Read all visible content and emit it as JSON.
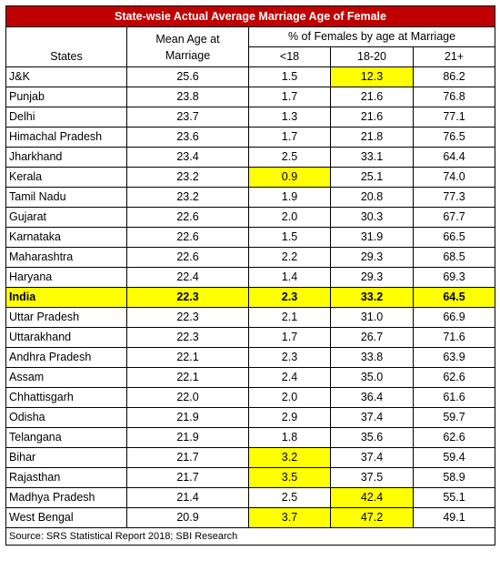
{
  "title": "State-wsie Actual Average Marriage Age of Female",
  "headers": {
    "states": "States",
    "mean_line1": "Mean Age at",
    "mean_line2": "Marriage",
    "pct_group": "% of Females by age at Marriage",
    "lt18": "<18",
    "r18_20": "18-20",
    "r21p": "21+"
  },
  "rows": [
    {
      "state": "J&K",
      "mean": "25.6",
      "lt18": "1.5",
      "r18_20": "12.3",
      "r21p": "86.2",
      "highlight": [
        "r18_20"
      ]
    },
    {
      "state": "Punjab",
      "mean": "23.8",
      "lt18": "1.7",
      "r18_20": "21.6",
      "r21p": "76.8",
      "highlight": []
    },
    {
      "state": "Delhi",
      "mean": "23.7",
      "lt18": "1.3",
      "r18_20": "21.6",
      "r21p": "77.1",
      "highlight": []
    },
    {
      "state": "Himachal Pradesh",
      "mean": "23.6",
      "lt18": "1.7",
      "r18_20": "21.8",
      "r21p": "76.5",
      "highlight": []
    },
    {
      "state": "Jharkhand",
      "mean": "23.4",
      "lt18": "2.5",
      "r18_20": "33.1",
      "r21p": "64.4",
      "highlight": []
    },
    {
      "state": "Kerala",
      "mean": "23.2",
      "lt18": "0.9",
      "r18_20": "25.1",
      "r21p": "74.0",
      "highlight": [
        "lt18"
      ]
    },
    {
      "state": "Tamil Nadu",
      "mean": "23.2",
      "lt18": "1.9",
      "r18_20": "20.8",
      "r21p": "77.3",
      "highlight": []
    },
    {
      "state": "Gujarat",
      "mean": "22.6",
      "lt18": "2.0",
      "r18_20": "30.3",
      "r21p": "67.7",
      "highlight": []
    },
    {
      "state": "Karnataka",
      "mean": "22.6",
      "lt18": "1.5",
      "r18_20": "31.9",
      "r21p": "66.5",
      "highlight": []
    },
    {
      "state": "Maharashtra",
      "mean": "22.6",
      "lt18": "2.2",
      "r18_20": "29.3",
      "r21p": "68.5",
      "highlight": []
    },
    {
      "state": "Haryana",
      "mean": "22.4",
      "lt18": "1.4",
      "r18_20": "29.3",
      "r21p": "69.3",
      "highlight": []
    },
    {
      "state": "India",
      "mean": "22.3",
      "lt18": "2.3",
      "r18_20": "33.2",
      "r21p": "64.5",
      "highlight": [],
      "row_highlight": true
    },
    {
      "state": "Uttar Pradesh",
      "mean": "22.3",
      "lt18": "2.1",
      "r18_20": "31.0",
      "r21p": "66.9",
      "highlight": []
    },
    {
      "state": "Uttarakhand",
      "mean": "22.3",
      "lt18": "1.7",
      "r18_20": "26.7",
      "r21p": "71.6",
      "highlight": []
    },
    {
      "state": "Andhra Pradesh",
      "mean": "22.1",
      "lt18": "2.3",
      "r18_20": "33.8",
      "r21p": "63.9",
      "highlight": []
    },
    {
      "state": "Assam",
      "mean": "22.1",
      "lt18": "2.4",
      "r18_20": "35.0",
      "r21p": "62.6",
      "highlight": []
    },
    {
      "state": "Chhattisgarh",
      "mean": "22.0",
      "lt18": "2.0",
      "r18_20": "36.4",
      "r21p": "61.6",
      "highlight": []
    },
    {
      "state": "Odisha",
      "mean": "21.9",
      "lt18": "2.9",
      "r18_20": "37.4",
      "r21p": "59.7",
      "highlight": []
    },
    {
      "state": "Telangana",
      "mean": "21.9",
      "lt18": "1.8",
      "r18_20": "35.6",
      "r21p": "62.6",
      "highlight": []
    },
    {
      "state": "Bihar",
      "mean": "21.7",
      "lt18": "3.2",
      "r18_20": "37.4",
      "r21p": "59.4",
      "highlight": [
        "lt18"
      ]
    },
    {
      "state": "Rajasthan",
      "mean": "21.7",
      "lt18": "3.5",
      "r18_20": "37.5",
      "r21p": "58.9",
      "highlight": [
        "lt18"
      ]
    },
    {
      "state": "Madhya Pradesh",
      "mean": "21.4",
      "lt18": "2.5",
      "r18_20": "42.4",
      "r21p": "55.1",
      "highlight": [
        "r18_20"
      ]
    },
    {
      "state": "West Bengal",
      "mean": "20.9",
      "lt18": "3.7",
      "r18_20": "47.2",
      "r21p": "49.1",
      "highlight": [
        "lt18",
        "r18_20"
      ]
    }
  ],
  "source": "Source: SRS Statistical Report 2018; SBI Research",
  "colors": {
    "title_bg": "#c00000",
    "highlight": "#ffff00"
  }
}
